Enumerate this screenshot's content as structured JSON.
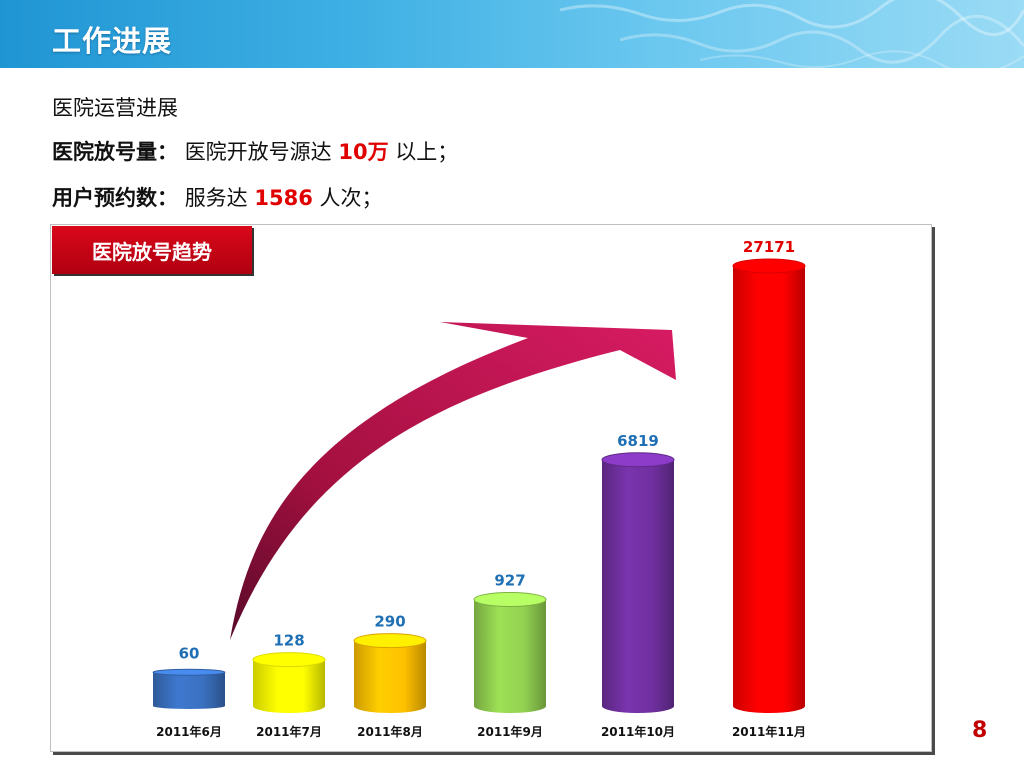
{
  "header": {
    "title": "工作进展"
  },
  "section_title": "医院运营进展",
  "line1": {
    "label": "医院放号量：",
    "text_before": "医院开放号源达",
    "highlight": "10万",
    "text_after": "以上；"
  },
  "line2": {
    "label": "用户预约数：",
    "text_before": "服务达",
    "highlight": "1586",
    "text_after": "人次；"
  },
  "chart_data": {
    "type": "bar",
    "title": "医院放号趋势",
    "categories": [
      "2011年6月",
      "2011年7月",
      "2011年8月",
      "2011年9月",
      "2011年10月",
      "2011年11月"
    ],
    "values": [
      60,
      128,
      290,
      927,
      6819,
      27171
    ],
    "value_label_colors": [
      "#1f6fb5",
      "#1f6fb5",
      "#1f6fb5",
      "#1f6fb5",
      "#1f6fb5",
      "#e10000"
    ],
    "bar_colors": [
      "#3a70c0",
      "#ffff00",
      "#ffc000",
      "#92d050",
      "#7030a0",
      "#ff0000"
    ],
    "arrow_color": "#c8145a"
  },
  "page_number": "8",
  "colors": {
    "accent_red": "#e10000",
    "header_blue": "#2a9fd8"
  }
}
